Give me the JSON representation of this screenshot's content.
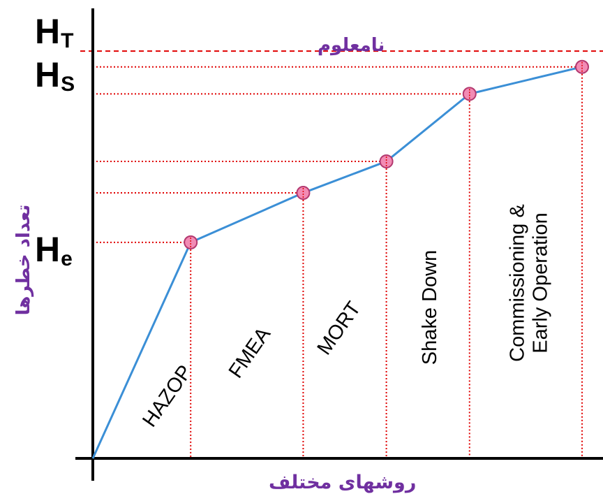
{
  "chart_data": {
    "type": "line",
    "unknown_label": "نامعلوم",
    "x_axis_label": "روشهای مختلف",
    "y_axis_label": "تعداد خطرها",
    "y_markers": [
      {
        "name": "H",
        "sub": "T",
        "level": 0.905
      },
      {
        "name": "H",
        "sub": "S",
        "level": 0.845
      },
      {
        "name": "H",
        "sub": "e",
        "level": 0.48
      }
    ],
    "points": [
      {
        "x": 0.0,
        "y": 0.0
      },
      {
        "x": 0.2,
        "y": 0.48
      },
      {
        "x": 0.43,
        "y": 0.59
      },
      {
        "x": 0.6,
        "y": 0.66
      },
      {
        "x": 0.77,
        "y": 0.81
      },
      {
        "x": 1.0,
        "y": 0.87
      }
    ],
    "method_labels": [
      {
        "text": "HAZOP",
        "lines": [
          "HAZOP"
        ]
      },
      {
        "text": "FMEA",
        "lines": [
          "FMEA"
        ]
      },
      {
        "text": "MORT",
        "lines": [
          "MORT"
        ]
      },
      {
        "text": "Shake Down",
        "lines": [
          "Shake Down"
        ]
      },
      {
        "text": "Commissioning & Early Operation",
        "lines": [
          "Commissioning &",
          "Early Operation"
        ]
      }
    ],
    "colors": {
      "line": "#3b8fd6",
      "guide": "#e00000",
      "point_fill": "#f28bb4",
      "point_stroke": "#b3386f",
      "persian_text": "#7030a0"
    }
  }
}
